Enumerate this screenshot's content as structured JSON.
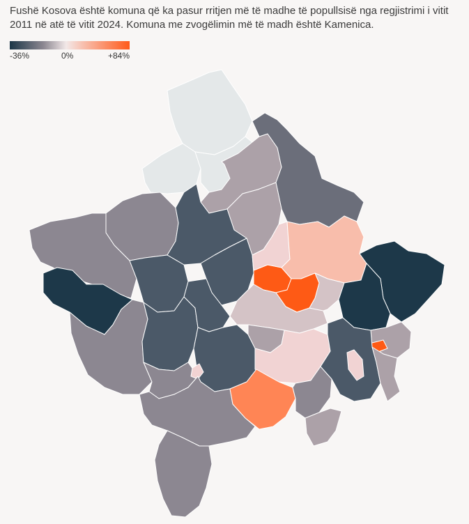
{
  "caption": "Fushë Kosova është komuna që ka pasur rritjen më të madhe të popullsisë nga regjistrimi i vitit 2011 në atë të vitit 2024. Komuna me zvogëlimin më të madh është Kamenica.",
  "legend": {
    "min_label": "-36%",
    "mid_label": "0%",
    "max_label": "+84%",
    "colors": {
      "min": "#1b3647",
      "mid": "#f2e8e8",
      "max": "#ff5a1a"
    }
  },
  "map_colors": {
    "no_data": "#e4e8e9",
    "very_dark": "#1d3849",
    "dark": "#4b5968",
    "medium_dark": "#6b6e7a",
    "medium": "#8c8791",
    "medium_light": "#aca1a8",
    "light": "#d4c3c6",
    "very_light": "#f1d3d3",
    "peach": "#f8bdab",
    "orange": "#ff8555",
    "bright_orange": "#fe5a15"
  }
}
